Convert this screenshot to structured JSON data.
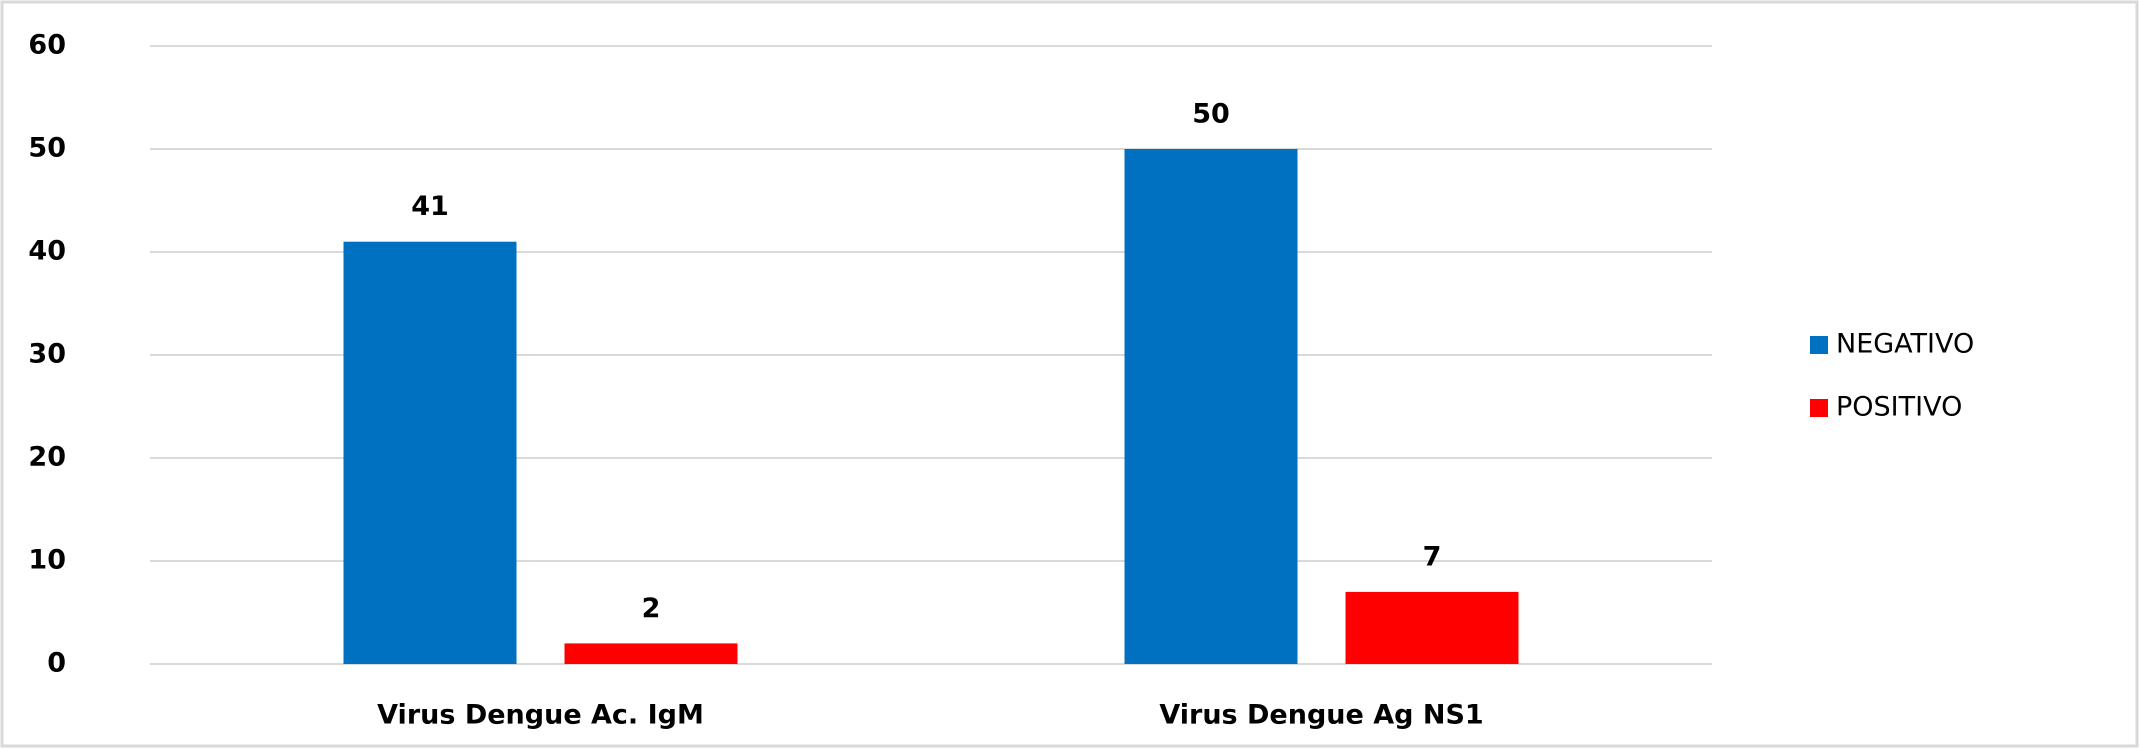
{
  "chart_data": {
    "type": "bar",
    "categories": [
      "Virus Dengue Ac. IgM",
      "Virus Dengue Ag NS1"
    ],
    "series": [
      {
        "name": "NEGATIVO",
        "color": "#0070c0",
        "values": [
          41,
          50
        ]
      },
      {
        "name": "POSITIVO",
        "color": "#ff0000",
        "values": [
          2,
          7
        ]
      }
    ],
    "ylim": [
      0,
      60
    ],
    "yticks": [
      0,
      10,
      20,
      30,
      40,
      50,
      60
    ],
    "grid": true,
    "legend": "right"
  }
}
